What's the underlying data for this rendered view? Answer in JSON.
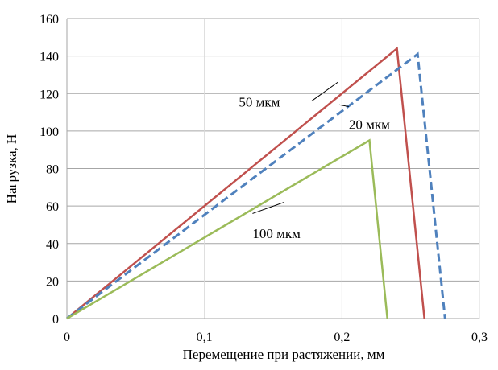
{
  "chart_data": {
    "type": "line",
    "title": "",
    "xlabel": "Перемещение при растяжении, мм",
    "ylabel": "Нагрузка, Н",
    "xlim": [
      0,
      0.3
    ],
    "ylim": [
      0,
      160
    ],
    "x_ticks": [
      0,
      0.1,
      0.2,
      0.3
    ],
    "x_tick_labels": [
      "0",
      "0,1",
      "0,2",
      "0,3"
    ],
    "y_ticks": [
      0,
      20,
      40,
      60,
      80,
      100,
      120,
      140,
      160
    ],
    "y_tick_labels": [
      "0",
      "20",
      "40",
      "60",
      "80",
      "100",
      "120",
      "140",
      "160"
    ],
    "grid": {
      "horizontal": true,
      "vertical": true
    },
    "legend": "none",
    "series": [
      {
        "name": "50 мкм",
        "color": "#c0504d",
        "style": "solid",
        "x": [
          0,
          0.24,
          0.26
        ],
        "y": [
          0,
          144,
          0
        ]
      },
      {
        "name": "20 мкм",
        "color": "#4f81bd",
        "style": "dashed",
        "x": [
          0,
          0.255,
          0.275
        ],
        "y": [
          0,
          141,
          0
        ]
      },
      {
        "name": "100 мкм",
        "color": "#9bbb59",
        "style": "solid",
        "x": [
          0,
          0.22,
          0.233
        ],
        "y": [
          0,
          95,
          0
        ]
      }
    ],
    "annotations": [
      {
        "text": "50 мкм",
        "series": "50 мкм",
        "at": [
          0.175,
          112
        ]
      },
      {
        "text": "20 мкм",
        "series": "20 мкм",
        "at": [
          0.205,
          109
        ]
      },
      {
        "text": "100 мкм",
        "series": "100 мкм",
        "at": [
          0.135,
          56
        ]
      }
    ]
  }
}
